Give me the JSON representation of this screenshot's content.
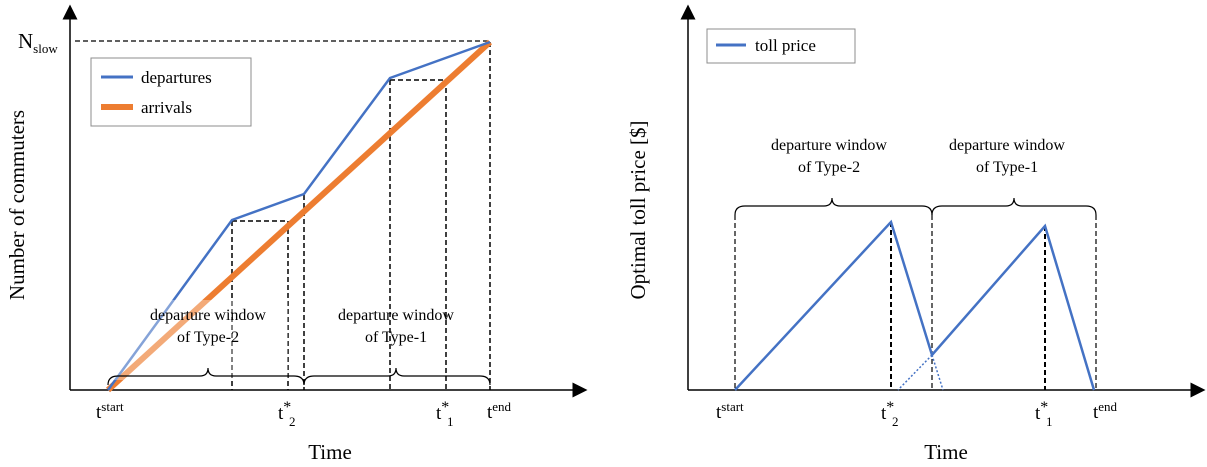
{
  "colors": {
    "departures": "#4472C4",
    "arrivals": "#ED7D31",
    "toll": "#4472C4"
  },
  "left": {
    "y_axis_label": "Number of commuters",
    "x_axis_label": "Time",
    "n_label_main": "N",
    "n_label_sub": "slow",
    "legend": {
      "departures": "departures",
      "arrivals": "arrivals"
    },
    "window2": {
      "line1": "departure window",
      "line2": "of Type-2"
    },
    "window1": {
      "line1": "departure window",
      "line2": "of Type-1"
    },
    "ticks": {
      "start_main": "t",
      "start_sup": "start",
      "t2_main": "t",
      "t2_sup": "*",
      "t2_sub": "2",
      "t1_main": "t",
      "t1_sup": "*",
      "t1_sub": "1",
      "end_main": "t",
      "end_sup": "end"
    }
  },
  "right": {
    "y_axis_label": "Optimal toll price [$]",
    "x_axis_label": "Time",
    "legend": {
      "toll": "toll price"
    },
    "window2": {
      "line1": "departure window",
      "line2": "of Type-2"
    },
    "window1": {
      "line1": "departure window",
      "line2": "of Type-1"
    },
    "ticks": {
      "start_main": "t",
      "start_sup": "start",
      "t2_main": "t",
      "t2_sup": "*",
      "t2_sub": "2",
      "t1_main": "t",
      "t1_sup": "*",
      "t1_sub": "1",
      "end_main": "t",
      "end_sup": "end"
    }
  }
}
